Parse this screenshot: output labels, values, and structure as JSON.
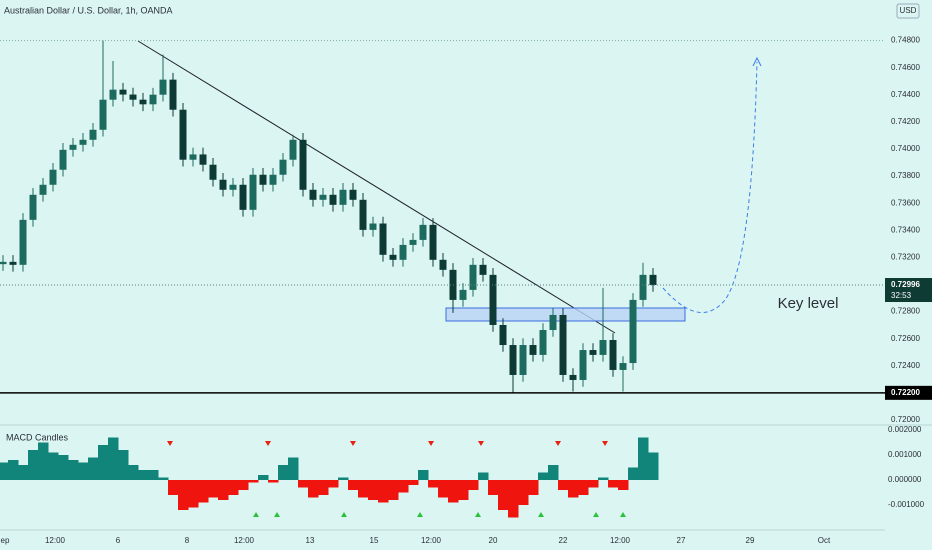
{
  "chart_data": [
    {
      "type": "candlestick",
      "title": "Australian Dollar / U.S. Dollar, 1h, OANDA",
      "currency": "USD",
      "xlim": [
        -0.3,
        88.2
      ],
      "xticks": [
        {
          "value": 0.2,
          "label": "ep"
        },
        {
          "value": 5.2,
          "label": "12:00"
        },
        {
          "value": 11.5,
          "label": "6"
        },
        {
          "value": 18.4,
          "label": "8"
        },
        {
          "value": 24.1,
          "label": "12:00"
        },
        {
          "value": 30.7,
          "label": "13"
        },
        {
          "value": 37.1,
          "label": "15"
        },
        {
          "value": 42.8,
          "label": "12:00"
        },
        {
          "value": 49,
          "label": "20"
        },
        {
          "value": 56,
          "label": "22"
        },
        {
          "value": 61.7,
          "label": "12:00"
        },
        {
          "value": 67.8,
          "label": "27"
        },
        {
          "value": 74.7,
          "label": "29"
        },
        {
          "value": 82.1,
          "label": "Oct"
        }
      ],
      "ylim": [
        0.7197,
        0.751
      ],
      "yticks": [
        {
          "value": 0.748,
          "label": "0.74800"
        },
        {
          "value": 0.746,
          "label": "0.74600"
        },
        {
          "value": 0.744,
          "label": "0.74400"
        },
        {
          "value": 0.742,
          "label": "0.74200"
        },
        {
          "value": 0.74,
          "label": "0.74000"
        },
        {
          "value": 0.738,
          "label": "0.73800"
        },
        {
          "value": 0.736,
          "label": "0.73600"
        },
        {
          "value": 0.734,
          "label": "0.73400"
        },
        {
          "value": 0.732,
          "label": "0.73200"
        },
        {
          "value": 0.728,
          "label": "0.72800"
        },
        {
          "value": 0.726,
          "label": "0.72600"
        },
        {
          "value": 0.724,
          "label": "0.72400"
        },
        {
          "value": 0.72,
          "label": "0.72000"
        }
      ],
      "open": [
        0.7315,
        0.73167,
        0.73145,
        0.73477,
        0.73662,
        0.73736,
        0.73847,
        0.73994,
        0.74031,
        0.74068,
        0.74142,
        0.74364,
        0.74438,
        0.74402,
        0.74364,
        0.7433,
        0.74401,
        0.74512,
        0.7429,
        0.73921,
        0.7396,
        0.73884,
        0.73773,
        0.73699,
        0.73736,
        0.73551,
        0.7381,
        0.73736,
        0.7381,
        0.73921,
        0.74068,
        0.73699,
        0.73625,
        0.73662,
        0.73588,
        0.73699,
        0.73625,
        0.73403,
        0.7345,
        0.73219,
        0.73182,
        0.73292,
        0.73329,
        0.7344,
        0.73182,
        0.73108,
        0.72886,
        0.7296,
        0.73145,
        0.73071,
        0.72701,
        0.72553,
        0.72332,
        0.72553,
        0.7248,
        0.72664,
        0.72775,
        0.72332,
        0.72295,
        0.72516,
        0.7248,
        0.7259,
        0.72369,
        0.7242,
        0.72886,
        0.73071
      ],
      "high": [
        0.73217,
        0.73217,
        0.73527,
        0.73712,
        0.73786,
        0.73897,
        0.74044,
        0.74081,
        0.74118,
        0.74192,
        0.748,
        0.7465,
        0.74488,
        0.74452,
        0.74414,
        0.74451,
        0.74697,
        0.74562,
        0.7434,
        0.7401,
        0.7401,
        0.73934,
        0.73823,
        0.73786,
        0.73786,
        0.7386,
        0.7386,
        0.7386,
        0.73971,
        0.74105,
        0.74118,
        0.73749,
        0.73712,
        0.73712,
        0.73749,
        0.73749,
        0.73675,
        0.735,
        0.735,
        0.73269,
        0.73342,
        0.73379,
        0.73492,
        0.7349,
        0.73232,
        0.73158,
        0.7301,
        0.73195,
        0.73195,
        0.73121,
        0.72751,
        0.72603,
        0.72603,
        0.72603,
        0.72714,
        0.72825,
        0.72825,
        0.72382,
        0.72566,
        0.72566,
        0.72975,
        0.7264,
        0.7247,
        0.72936,
        0.7316,
        0.73121
      ],
      "low": [
        0.731,
        0.73095,
        0.73095,
        0.73427,
        0.73612,
        0.73686,
        0.73797,
        0.73944,
        0.73981,
        0.74018,
        0.74092,
        0.74314,
        0.74352,
        0.74314,
        0.7428,
        0.7428,
        0.74351,
        0.7424,
        0.73871,
        0.73871,
        0.73834,
        0.73723,
        0.73649,
        0.73649,
        0.73501,
        0.73501,
        0.73686,
        0.73686,
        0.7376,
        0.73871,
        0.73649,
        0.73575,
        0.73575,
        0.73538,
        0.73538,
        0.73575,
        0.73353,
        0.73353,
        0.73169,
        0.73132,
        0.73132,
        0.73242,
        0.73279,
        0.73132,
        0.73058,
        0.7279,
        0.72836,
        0.7291,
        0.73021,
        0.72651,
        0.72503,
        0.722,
        0.72282,
        0.7243,
        0.7243,
        0.72614,
        0.72282,
        0.7221,
        0.72245,
        0.7243,
        0.7243,
        0.72319,
        0.7221,
        0.7237,
        0.72836,
        0.72946
      ],
      "close": [
        0.73167,
        0.73145,
        0.73477,
        0.73662,
        0.73736,
        0.73847,
        0.73994,
        0.74031,
        0.74068,
        0.74142,
        0.74364,
        0.74438,
        0.74402,
        0.74364,
        0.7433,
        0.74401,
        0.74512,
        0.7429,
        0.73921,
        0.7396,
        0.73884,
        0.73773,
        0.73699,
        0.73736,
        0.73551,
        0.7381,
        0.73736,
        0.7381,
        0.73921,
        0.74068,
        0.73699,
        0.73625,
        0.73662,
        0.73588,
        0.73699,
        0.73625,
        0.73403,
        0.7345,
        0.73219,
        0.73182,
        0.73292,
        0.73329,
        0.7344,
        0.73182,
        0.73108,
        0.72886,
        0.7296,
        0.73145,
        0.73071,
        0.72701,
        0.72553,
        0.72332,
        0.72553,
        0.7248,
        0.72664,
        0.72775,
        0.72332,
        0.72295,
        0.72516,
        0.7248,
        0.7259,
        0.72369,
        0.7242,
        0.72886,
        0.73071,
        0.72996
      ],
      "up_color": "#1d6b5f",
      "down_color": "#0d3a34",
      "levels": [
        {
          "value": 0.722,
          "label": "0.72200"
        }
      ],
      "last_price": 0.72996,
      "countdown": "32:53",
      "annotation": "Key level"
    },
    {
      "type": "bar",
      "title": "MACD Candles",
      "values": [
        0.0007,
        0.0008,
        0.0006,
        0.0012,
        0.0015,
        0.0011,
        0.001,
        0.0008,
        0.0007,
        0.0009,
        0.0014,
        0.0017,
        0.0012,
        0.0006,
        0.0004,
        0.0004,
        0.0001,
        -0.0006,
        -0.0012,
        -0.0011,
        -0.0009,
        -0.0007,
        -0.0008,
        -0.0006,
        -0.0004,
        -0.0001,
        0.0002,
        -0.0001,
        0.0006,
        0.0009,
        -0.0003,
        -0.0007,
        -0.0006,
        -0.0003,
        0.0001,
        -0.0004,
        -0.0007,
        -0.0008,
        -0.0009,
        -0.0008,
        -0.0005,
        -0.0002,
        0.0004,
        -0.0003,
        -0.0007,
        -0.0009,
        -0.0008,
        -0.0004,
        0.0003,
        -0.0006,
        -0.0012,
        -0.0015,
        -0.001,
        -0.0006,
        0.0003,
        0.0006,
        -0.0004,
        -0.0007,
        -0.0006,
        -0.0003,
        0.0001,
        -0.0003,
        -0.0004,
        0.0005,
        0.0017,
        0.0011
      ],
      "positive_color": "#11857a",
      "negative_color": "#f0140f",
      "ylim": [
        -0.002,
        0.0022
      ],
      "yticks": [
        {
          "value": 0.002,
          "label": "0.002000"
        },
        {
          "value": 0.001,
          "label": "0.001000"
        },
        {
          "value": 0,
          "label": "0.000000"
        },
        {
          "value": -0.001,
          "label": "-0.001000"
        }
      ]
    }
  ]
}
